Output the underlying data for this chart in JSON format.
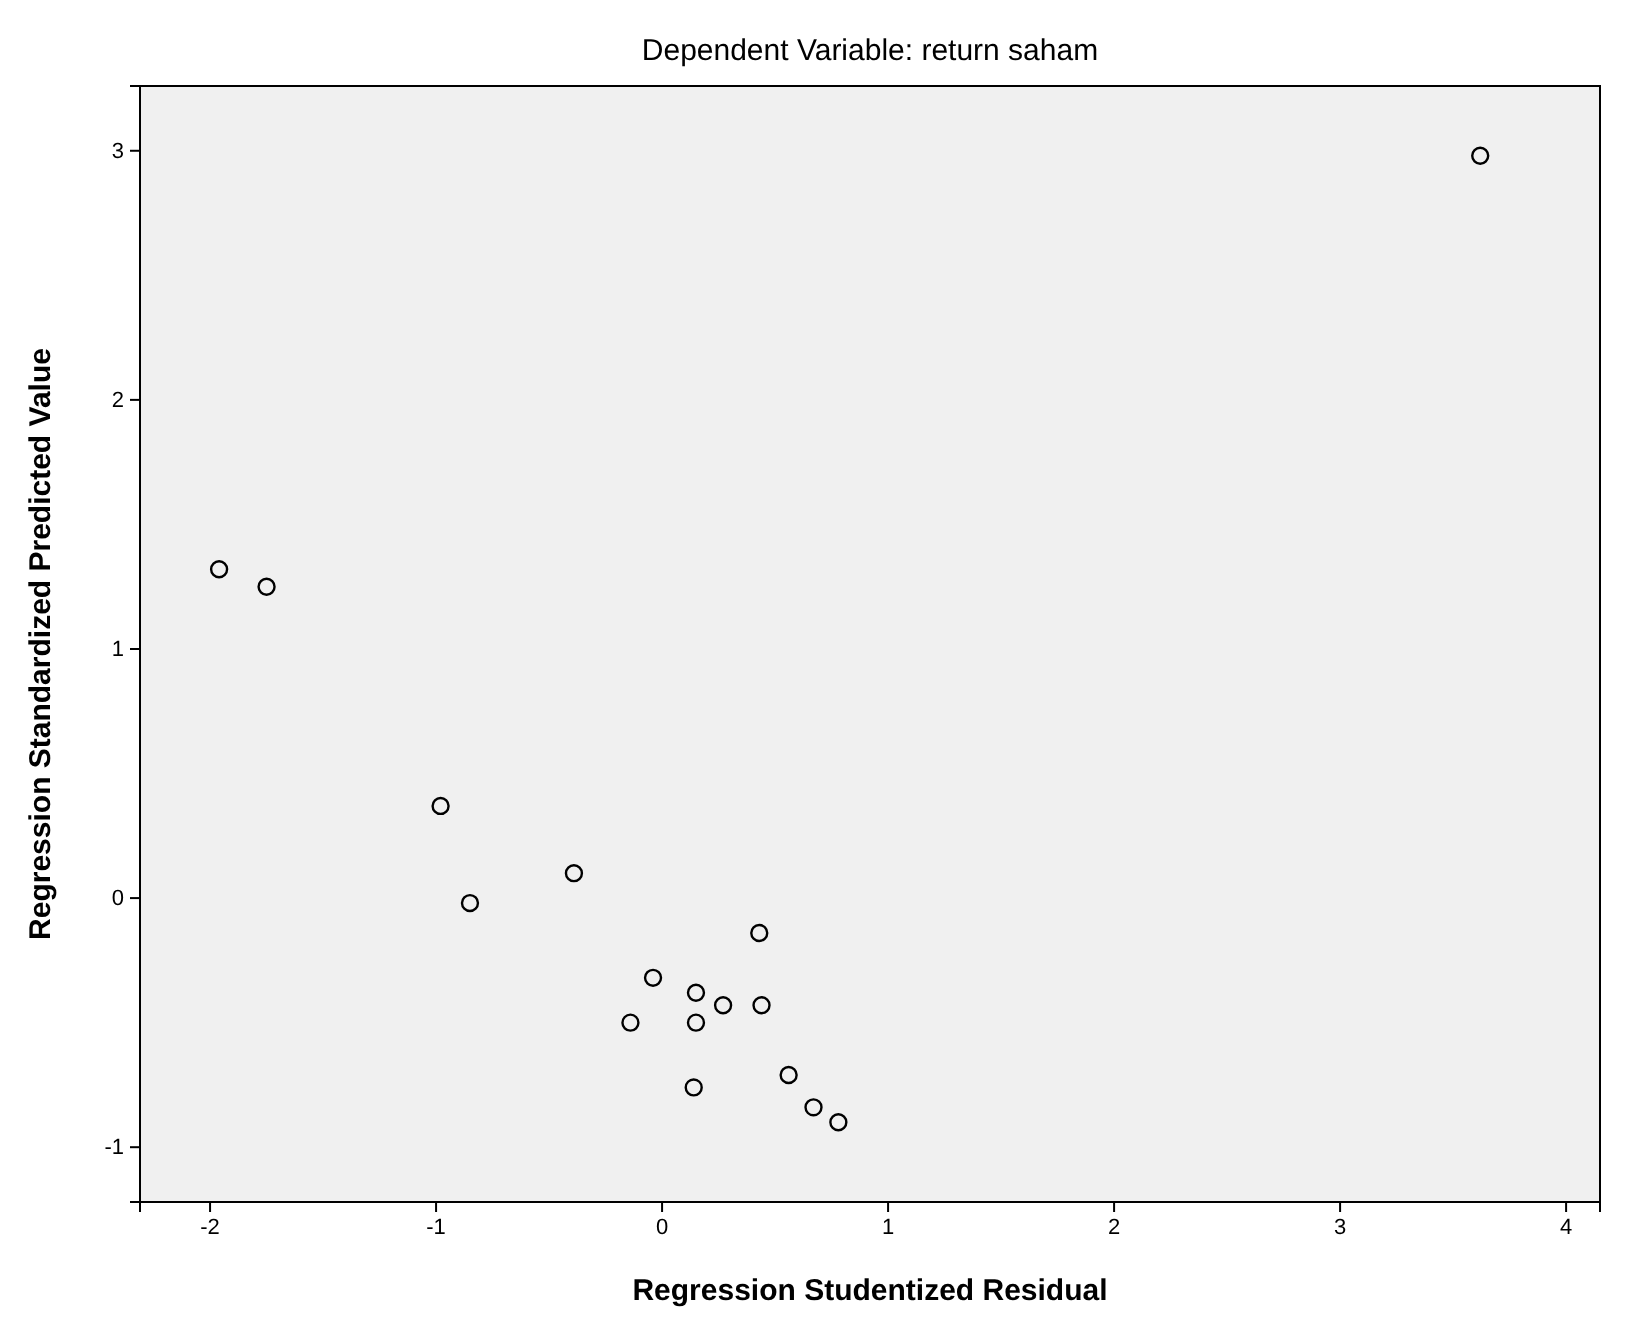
{
  "chart_data": {
    "type": "scatter",
    "title": "Dependent Variable: return saham",
    "xlabel": "Regression Studentized Residual",
    "ylabel": "Regression Standardized Predicted Value",
    "x": [
      3.62,
      -1.96,
      -1.75,
      -0.98,
      -0.85,
      -0.39,
      0.43,
      -0.04,
      0.15,
      0.27,
      0.44,
      -0.14,
      0.15,
      0.56,
      0.14,
      0.67,
      0.78
    ],
    "series": [
      {
        "color": "#000000",
        "values": [
          2.98,
          1.32,
          1.25,
          0.37,
          -0.02,
          0.1,
          -0.14,
          -0.32,
          -0.38,
          -0.43,
          -0.43,
          -0.5,
          -0.5,
          -0.71,
          -0.76,
          -0.84,
          -0.9
        ]
      }
    ],
    "xlim": [
      -2.31,
      4.15
    ],
    "xticks": [
      -2,
      -1,
      0,
      1,
      2,
      3,
      4
    ],
    "ylim": [
      -1.22,
      3.26
    ],
    "yticks": [
      -1,
      0,
      1,
      2,
      3
    ],
    "marker": "circle",
    "grid": false
  }
}
